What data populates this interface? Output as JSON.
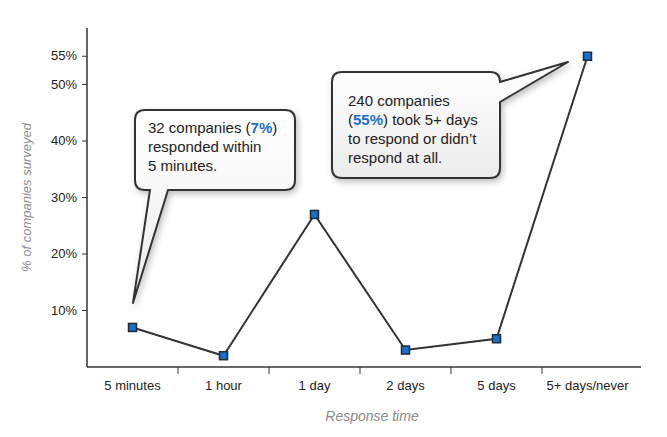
{
  "chart_data": {
    "type": "line",
    "x_label": "Response time",
    "y_label": "% of companies surveyed",
    "categories": [
      "5 minutes",
      "1 hour",
      "1 day",
      "2 days",
      "5 days",
      "5+ days/never"
    ],
    "values": [
      7,
      2,
      27,
      3,
      5,
      55
    ],
    "color": "#1a6fc9",
    "marker": "square",
    "line_style": "solid",
    "grid": false,
    "ylim": [
      0,
      60
    ],
    "yticks": [
      {
        "value": 10,
        "label": "10%"
      },
      {
        "value": 20,
        "label": "20%"
      },
      {
        "value": 30,
        "label": "30%"
      },
      {
        "value": 40,
        "label": "40%"
      },
      {
        "value": 50,
        "label": "50%"
      },
      {
        "value": 55,
        "label": "55%"
      }
    ],
    "annotations": [
      {
        "lines": [
          [
            "32 companies (",
            "7%",
            ")"
          ],
          [
            "responded within"
          ],
          [
            "5 minutes."
          ]
        ]
      },
      {
        "lines": [
          [
            "240 companies"
          ],
          [
            "(",
            "55%",
            ") took 5+ days"
          ],
          [
            "to respond or didn’t"
          ],
          [
            "respond at all."
          ]
        ]
      }
    ]
  }
}
